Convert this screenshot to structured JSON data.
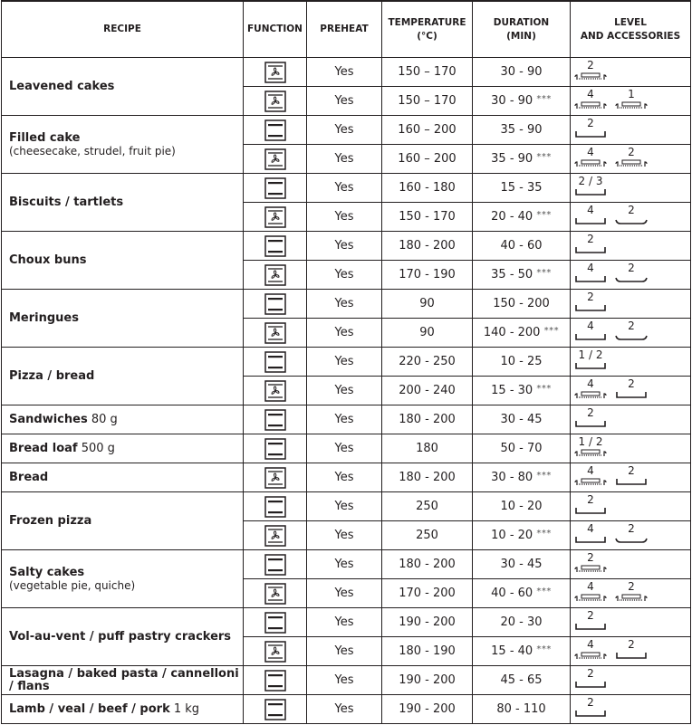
{
  "headers": {
    "recipe": "RECIPE",
    "function": "FUNCTION",
    "preheat": "PREHEAT",
    "temperature": "TEMPERATURE",
    "temperature_unit": "(°C)",
    "duration": "DURATION",
    "duration_unit": "(MIN)",
    "level": "LEVEL",
    "level2": "AND ACCESSORIES"
  },
  "recipes": [
    {
      "name": "Leavened cakes",
      "suffix": "",
      "sub": "",
      "rows": [
        {
          "function": "fan",
          "preheat": "Yes",
          "temp": "150 – 170",
          "duration": "30 - 90",
          "stars": "",
          "acc": [
            {
              "level": "2",
              "type": "rack"
            }
          ]
        },
        {
          "function": "fan",
          "preheat": "Yes",
          "temp": "150 – 170",
          "duration": "30 - 90",
          "stars": "***",
          "acc": [
            {
              "level": "4",
              "type": "rack"
            },
            {
              "level": "1",
              "type": "rack"
            }
          ]
        }
      ]
    },
    {
      "name": "Filled cake",
      "suffix": "",
      "sub": "(cheesecake, strudel, fruit pie)",
      "rows": [
        {
          "function": "static",
          "preheat": "Yes",
          "temp": "160 – 200",
          "duration": "35 - 90",
          "stars": "",
          "acc": [
            {
              "level": "2",
              "type": "tray"
            }
          ]
        },
        {
          "function": "fan",
          "preheat": "Yes",
          "temp": "160 – 200",
          "duration": "35 - 90",
          "stars": "***",
          "acc": [
            {
              "level": "4",
              "type": "rack"
            },
            {
              "level": "2",
              "type": "rack"
            }
          ]
        }
      ]
    },
    {
      "name": "Biscuits / tartlets",
      "suffix": "",
      "sub": "",
      "rows": [
        {
          "function": "static",
          "preheat": "Yes",
          "temp": "160 - 180",
          "duration": "15 - 35",
          "stars": "",
          "acc": [
            {
              "level": "2 / 3",
              "type": "tray"
            }
          ]
        },
        {
          "function": "fan",
          "preheat": "Yes",
          "temp": "150 - 170",
          "duration": "20 - 40",
          "stars": "***",
          "acc": [
            {
              "level": "4",
              "type": "tray"
            },
            {
              "level": "2",
              "type": "shelf"
            }
          ]
        }
      ]
    },
    {
      "name": "Choux buns",
      "suffix": "",
      "sub": "",
      "rows": [
        {
          "function": "static",
          "preheat": "Yes",
          "temp": "180 - 200",
          "duration": "40 - 60",
          "stars": "",
          "acc": [
            {
              "level": "2",
              "type": "tray"
            }
          ]
        },
        {
          "function": "fan",
          "preheat": "Yes",
          "temp": "170 - 190",
          "duration": "35 - 50",
          "stars": "***",
          "acc": [
            {
              "level": "4",
              "type": "tray"
            },
            {
              "level": "2",
              "type": "shelf"
            }
          ]
        }
      ]
    },
    {
      "name": "Meringues",
      "suffix": "",
      "sub": "",
      "rows": [
        {
          "function": "static",
          "preheat": "Yes",
          "temp": "90",
          "duration": "150 - 200",
          "stars": "",
          "acc": [
            {
              "level": "2",
              "type": "tray"
            }
          ]
        },
        {
          "function": "fan",
          "preheat": "Yes",
          "temp": "90",
          "duration": "140 - 200",
          "stars": "***",
          "acc": [
            {
              "level": "4",
              "type": "tray"
            },
            {
              "level": "2",
              "type": "shelf"
            }
          ]
        }
      ]
    },
    {
      "name": "Pizza / bread",
      "suffix": "",
      "sub": "",
      "rows": [
        {
          "function": "static",
          "preheat": "Yes",
          "temp": "220 - 250",
          "duration": "10 - 25",
          "stars": "",
          "acc": [
            {
              "level": "1 / 2",
              "type": "tray"
            }
          ]
        },
        {
          "function": "fan",
          "preheat": "Yes",
          "temp": "200 - 240",
          "duration": "15 - 30",
          "stars": "***",
          "acc": [
            {
              "level": "4",
              "type": "rack"
            },
            {
              "level": "2",
              "type": "tray"
            }
          ]
        }
      ]
    },
    {
      "name": "Sandwiches",
      "suffix": "80 g",
      "sub": "",
      "rows": [
        {
          "function": "static",
          "preheat": "Yes",
          "temp": "180 - 200",
          "duration": "30 - 45",
          "stars": "",
          "acc": [
            {
              "level": "2",
              "type": "tray"
            }
          ]
        }
      ]
    },
    {
      "name": "Bread loaf",
      "suffix": "500 g",
      "sub": "",
      "rows": [
        {
          "function": "static",
          "preheat": "Yes",
          "temp": "180",
          "duration": "50 - 70",
          "stars": "",
          "acc": [
            {
              "level": "1 / 2",
              "type": "rack"
            }
          ]
        }
      ]
    },
    {
      "name": "Bread",
      "suffix": "",
      "sub": "",
      "rows": [
        {
          "function": "fan",
          "preheat": "Yes",
          "temp": "180 - 200",
          "duration": "30 - 80",
          "stars": "***",
          "acc": [
            {
              "level": "4",
              "type": "rack"
            },
            {
              "level": "2",
              "type": "tray"
            }
          ]
        }
      ]
    },
    {
      "name": "Frozen pizza",
      "suffix": "",
      "sub": "",
      "rows": [
        {
          "function": "static",
          "preheat": "Yes",
          "temp": "250",
          "duration": "10 - 20",
          "stars": "",
          "acc": [
            {
              "level": "2",
              "type": "tray"
            }
          ]
        },
        {
          "function": "fan",
          "preheat": "Yes",
          "temp": "250",
          "duration": "10 - 20",
          "stars": "***",
          "acc": [
            {
              "level": "4",
              "type": "tray"
            },
            {
              "level": "2",
              "type": "shelf"
            }
          ]
        }
      ]
    },
    {
      "name": "Salty cakes",
      "suffix": "",
      "sub": "(vegetable pie, quiche)",
      "rows": [
        {
          "function": "static",
          "preheat": "Yes",
          "temp": "180 - 200",
          "duration": "30 - 45",
          "stars": "",
          "acc": [
            {
              "level": "2",
              "type": "rack"
            }
          ]
        },
        {
          "function": "fan",
          "preheat": "Yes",
          "temp": "170 - 200",
          "duration": "40 - 60",
          "stars": "***",
          "acc": [
            {
              "level": "4",
              "type": "rack"
            },
            {
              "level": "2",
              "type": "rack"
            }
          ]
        }
      ]
    },
    {
      "name": "Vol-au-vent / puff pastry crackers",
      "suffix": "",
      "sub": "",
      "rows": [
        {
          "function": "static",
          "preheat": "Yes",
          "temp": "190 - 200",
          "duration": "20 - 30",
          "stars": "",
          "acc": [
            {
              "level": "2",
              "type": "tray"
            }
          ]
        },
        {
          "function": "fan",
          "preheat": "Yes",
          "temp": "180 - 190",
          "duration": "15 - 40",
          "stars": "***",
          "acc": [
            {
              "level": "4",
              "type": "rack"
            },
            {
              "level": "2",
              "type": "tray"
            }
          ]
        }
      ]
    },
    {
      "name": "Lasagna / baked pasta / cannelloni / flans",
      "suffix": "",
      "sub": "",
      "rows": [
        {
          "function": "static",
          "preheat": "Yes",
          "temp": "190 - 200",
          "duration": "45 - 65",
          "stars": "",
          "acc": [
            {
              "level": "2",
              "type": "tray"
            }
          ]
        }
      ]
    },
    {
      "name": "Lamb / veal / beef / pork",
      "suffix": "1 kg",
      "sub": "",
      "rows": [
        {
          "function": "static",
          "preheat": "Yes",
          "temp": "190 - 200",
          "duration": "80 - 110",
          "stars": "",
          "acc": [
            {
              "level": "2",
              "type": "tray"
            }
          ]
        }
      ]
    }
  ]
}
